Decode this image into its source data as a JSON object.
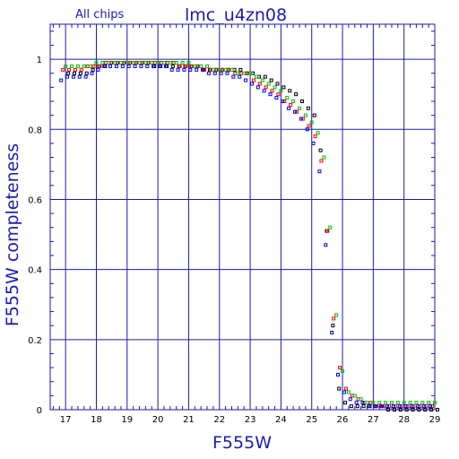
{
  "chart_data": {
    "type": "scatter",
    "title": "lmc_u4zn08",
    "subtitle": "All chips",
    "xlabel": "F555W",
    "ylabel": "F555W completeness",
    "xlim": [
      16.5,
      29
    ],
    "ylim": [
      0,
      1.1
    ],
    "x_ticks": [
      17,
      18,
      19,
      20,
      21,
      22,
      23,
      24,
      25,
      26,
      27,
      28,
      29
    ],
    "y_ticks": [
      0,
      0.2,
      0.4,
      0.6,
      0.8,
      1
    ],
    "y_tick_labels": [
      "0",
      "0.2",
      "0.4",
      "0.6",
      "0.8",
      "1"
    ],
    "grid": true,
    "colors": {
      "axis": "#1a1ab8",
      "grid": "#1a1ab8"
    },
    "series": [
      {
        "color": "#000000",
        "x": [
          17,
          17.2,
          17.4,
          17.6,
          17.8,
          18,
          18.2,
          18.4,
          18.6,
          18.8,
          19,
          19.2,
          19.4,
          19.6,
          19.8,
          20,
          20.2,
          20.4,
          20.6,
          20.8,
          21,
          21.2,
          21.4,
          21.6,
          21.8,
          22,
          22.2,
          22.4,
          22.6,
          22.8,
          23,
          23.2,
          23.4,
          23.6,
          23.8,
          24,
          24.2,
          24.4,
          24.6,
          24.8,
          25,
          25.2,
          25.4,
          25.6,
          25.8,
          26,
          26.2,
          26.4,
          26.6,
          26.8,
          27,
          27.2,
          27.4,
          27.6,
          27.8,
          28,
          28.2,
          28.4,
          28.6,
          28.8,
          29
        ],
        "y": [
          0.96,
          0.96,
          0.96,
          0.96,
          0.97,
          0.98,
          0.98,
          0.99,
          0.99,
          0.99,
          0.99,
          0.99,
          0.99,
          0.99,
          0.98,
          0.98,
          0.98,
          0.98,
          0.98,
          0.98,
          0.98,
          0.98,
          0.97,
          0.97,
          0.97,
          0.97,
          0.97,
          0.97,
          0.97,
          0.96,
          0.96,
          0.95,
          0.95,
          0.94,
          0.93,
          0.92,
          0.91,
          0.9,
          0.88,
          0.86,
          0.84,
          0.74,
          0.51,
          0.24,
          0.06,
          0.02,
          0.01,
          0.01,
          0.01,
          0.01,
          0.01,
          0.01,
          0,
          0,
          0,
          0,
          0,
          0,
          0,
          0,
          0
        ]
      },
      {
        "color": "#ff0000",
        "x": [
          17,
          17.2,
          17.4,
          17.6,
          17.8,
          18,
          18.2,
          18.4,
          18.6,
          18.8,
          19,
          19.2,
          19.4,
          19.6,
          19.8,
          20,
          20.2,
          20.4,
          20.6,
          20.8,
          21,
          21.2,
          21.4,
          21.6,
          21.8,
          22,
          22.2,
          22.4,
          22.6,
          22.8,
          23,
          23.2,
          23.4,
          23.6,
          23.8,
          24,
          24.2,
          24.4,
          24.6,
          24.8,
          25,
          25.2,
          25.4,
          25.6,
          25.8,
          26,
          26.2,
          26.4,
          26.6,
          26.8,
          27,
          27.2,
          27.4,
          27.6,
          27.8,
          28,
          28.2,
          28.4,
          28.6,
          28.8,
          29
        ],
        "y": [
          0.97,
          0.97,
          0.97,
          0.97,
          0.98,
          0.98,
          0.98,
          0.99,
          0.99,
          0.99,
          0.99,
          0.99,
          0.99,
          0.99,
          0.99,
          0.99,
          0.99,
          0.99,
          0.99,
          0.98,
          0.98,
          0.98,
          0.98,
          0.97,
          0.97,
          0.97,
          0.97,
          0.97,
          0.96,
          0.96,
          0.96,
          0.94,
          0.93,
          0.92,
          0.91,
          0.9,
          0.88,
          0.87,
          0.85,
          0.83,
          0.81,
          0.78,
          0.71,
          0.51,
          0.26,
          0.12,
          0.06,
          0.04,
          0.03,
          0.02,
          0.02,
          0.01,
          0.01,
          0.01,
          0.01,
          0.01,
          0.01,
          0.01,
          0.01,
          0.01,
          0.01
        ]
      },
      {
        "color": "#00c000",
        "x": [
          17,
          17.2,
          17.4,
          17.6,
          17.8,
          18,
          18.2,
          18.4,
          18.6,
          18.8,
          19,
          19.2,
          19.4,
          19.6,
          19.8,
          20,
          20.2,
          20.4,
          20.6,
          20.8,
          21,
          21.2,
          21.4,
          21.6,
          21.8,
          22,
          22.2,
          22.4,
          22.6,
          22.8,
          23,
          23.2,
          23.4,
          23.6,
          23.8,
          24,
          24.2,
          24.4,
          24.6,
          24.8,
          25,
          25.2,
          25.4,
          25.6,
          25.8,
          26,
          26.2,
          26.4,
          26.6,
          26.8,
          27,
          27.2,
          27.4,
          27.6,
          27.8,
          28,
          28.2,
          28.4,
          28.6,
          28.8,
          29
        ],
        "y": [
          0.98,
          0.98,
          0.98,
          0.98,
          0.98,
          0.99,
          0.99,
          0.99,
          0.99,
          0.99,
          0.99,
          0.99,
          0.99,
          0.99,
          0.99,
          0.99,
          0.99,
          0.99,
          0.99,
          0.99,
          0.99,
          0.98,
          0.98,
          0.98,
          0.97,
          0.97,
          0.97,
          0.97,
          0.96,
          0.96,
          0.96,
          0.95,
          0.94,
          0.93,
          0.92,
          0.91,
          0.89,
          0.88,
          0.86,
          0.84,
          0.82,
          0.79,
          0.72,
          0.52,
          0.27,
          0.11,
          0.05,
          0.04,
          0.03,
          0.02,
          0.02,
          0.02,
          0.02,
          0.02,
          0.02,
          0.02,
          0.02,
          0.02,
          0.02,
          0.02,
          0.02
        ]
      },
      {
        "color": "#0000ff",
        "x": [
          17,
          17.2,
          17.4,
          17.6,
          17.8,
          18,
          18.2,
          18.4,
          18.6,
          18.8,
          19,
          19.2,
          19.4,
          19.6,
          19.8,
          20,
          20.2,
          20.4,
          20.6,
          20.8,
          21,
          21.2,
          21.4,
          21.6,
          21.8,
          22,
          22.2,
          22.4,
          22.6,
          22.8,
          23,
          23.2,
          23.4,
          23.6,
          23.8,
          24,
          24.2,
          24.4,
          24.6,
          24.8,
          25,
          25.2,
          25.4,
          25.6,
          25.8,
          26,
          26.2,
          26.4,
          26.6,
          26.8,
          27,
          27.2,
          27.4,
          27.6,
          27.8,
          28,
          28.2,
          28.4,
          28.6,
          28.8,
          29
        ],
        "y": [
          0.94,
          0.95,
          0.95,
          0.95,
          0.95,
          0.96,
          0.97,
          0.98,
          0.98,
          0.98,
          0.98,
          0.98,
          0.98,
          0.98,
          0.98,
          0.98,
          0.98,
          0.98,
          0.97,
          0.97,
          0.97,
          0.97,
          0.97,
          0.97,
          0.96,
          0.96,
          0.96,
          0.96,
          0.95,
          0.95,
          0.94,
          0.93,
          0.92,
          0.91,
          0.9,
          0.89,
          0.88,
          0.86,
          0.85,
          0.83,
          0.8,
          0.76,
          0.68,
          0.47,
          0.22,
          0.1,
          0.05,
          0.03,
          0.02,
          0.02,
          0.01,
          0.01,
          0.01,
          0.01,
          0.01,
          0.01,
          0.01,
          0.01,
          0.01,
          0.01,
          0.01
        ]
      }
    ]
  }
}
